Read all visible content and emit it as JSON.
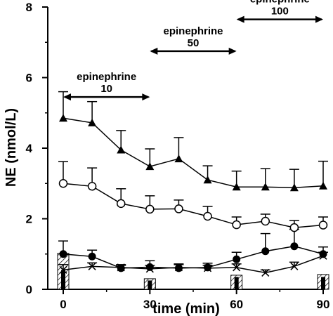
{
  "chart_data": {
    "type": "line",
    "xlabel": "time (min)",
    "ylabel": "NE (nmol/L)",
    "xlim": [
      0,
      90
    ],
    "ylim": [
      0,
      8
    ],
    "x_ticks": [
      "0",
      "30",
      "60",
      "90"
    ],
    "y_ticks": [
      "0",
      "2",
      "4",
      "6",
      "8"
    ],
    "grid": false,
    "legend": "none",
    "x": [
      0,
      10,
      20,
      30,
      40,
      50,
      60,
      70,
      80,
      90
    ],
    "series": [
      {
        "marker": "filled-triangle",
        "values": [
          4.85,
          4.72,
          3.95,
          3.48,
          3.7,
          3.1,
          2.9,
          2.9,
          2.88,
          2.93
        ],
        "error_up": [
          0.75,
          0.6,
          0.55,
          0.5,
          0.6,
          0.4,
          0.45,
          0.52,
          0.52,
          0.7
        ]
      },
      {
        "marker": "open-circle",
        "values": [
          3.0,
          2.92,
          2.43,
          2.27,
          2.28,
          2.07,
          1.83,
          1.93,
          1.75,
          1.82
        ],
        "error_up": [
          0.62,
          0.52,
          0.42,
          0.38,
          0.25,
          0.28,
          0.22,
          0.2,
          0.2,
          0.23
        ]
      },
      {
        "marker": "filled-circle",
        "values": [
          1.0,
          0.93,
          0.6,
          0.63,
          0.6,
          0.62,
          0.85,
          1.08,
          1.22,
          1.0
        ],
        "error_up": [
          0.37,
          0.18,
          0.08,
          0.18,
          0.12,
          0.12,
          0.2,
          0.5,
          0.48,
          0.2
        ]
      },
      {
        "marker": "x-cross",
        "values": [
          0.55,
          0.65,
          0.62,
          0.58,
          0.62,
          0.6,
          0.62,
          0.47,
          0.65,
          0.95
        ],
        "error_up": [
          0.15,
          0.1,
          0.08,
          0.1,
          0.08,
          0.08,
          0.1,
          0.08,
          0.12,
          0.1
        ]
      }
    ],
    "bars": {
      "x": [
        0,
        30,
        60,
        90
      ],
      "hatched_values": [
        1.02,
        0.3,
        0.4,
        0.42
      ],
      "solid_values": [
        0.55,
        0.25,
        0.35,
        0.35
      ]
    },
    "annotations": [
      {
        "line1": "epinephrine",
        "line2": "10",
        "from": 0,
        "to": 30,
        "arrow_y": 5.45
      },
      {
        "line1": "epinephrine",
        "line2": "50",
        "from": 30,
        "to": 60,
        "arrow_y": 6.75
      },
      {
        "line1": "epinephrine",
        "line2": "100",
        "from": 60,
        "to": 90,
        "arrow_y": 7.65
      }
    ]
  }
}
